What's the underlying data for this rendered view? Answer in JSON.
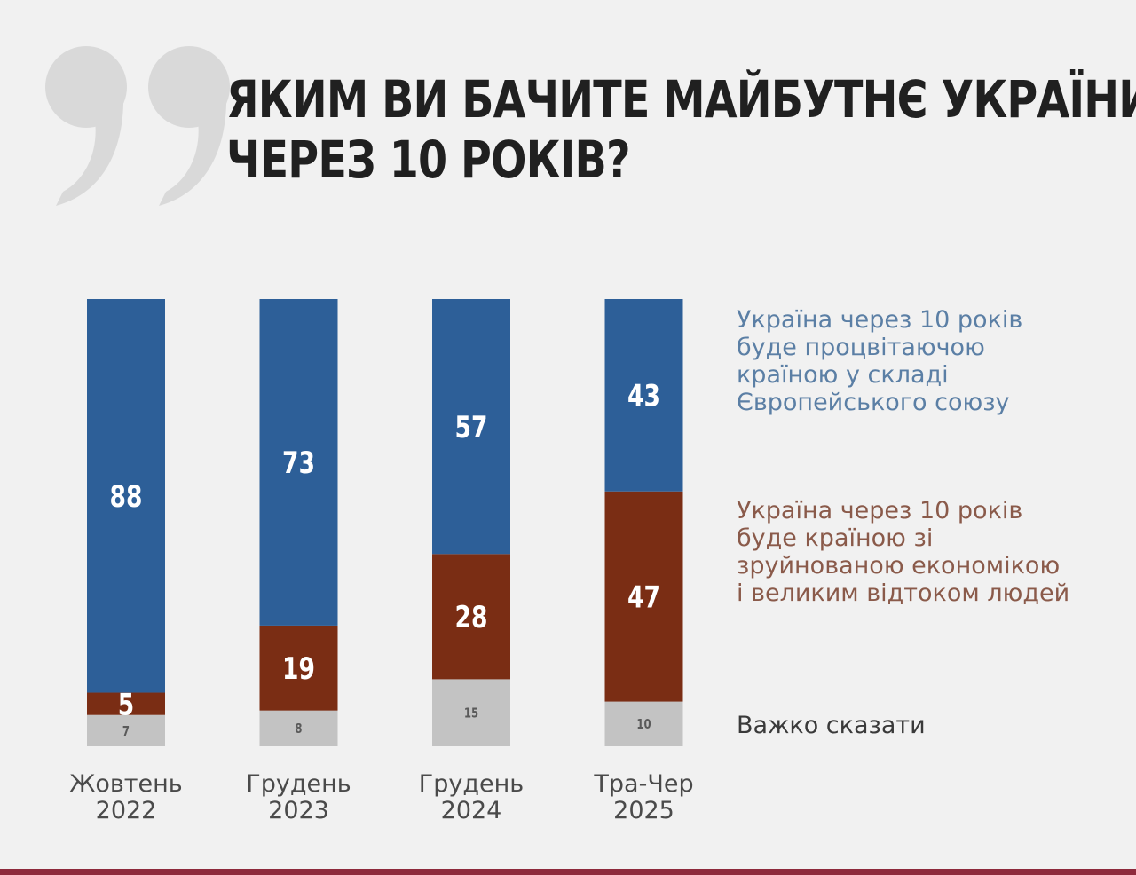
{
  "colors": {
    "background": "#f1f1f1",
    "blue": "#2d5f98",
    "red": "#7a2d14",
    "gray": "#c3c3c3",
    "quote": "#d9d9d9",
    "accent_line": "#8e2a3c"
  },
  "icons": {
    "quote": "quote-mark-icon"
  },
  "chart_data": {
    "type": "bar",
    "stacked": true,
    "title_lines": [
      "ЯКИМ ВИ БАЧИТЕ МАЙБУТНЄ УКРАЇНИ",
      "ЧЕРЕЗ 10 РОКІВ?"
    ],
    "categories": [
      [
        "Жовтень",
        "2022"
      ],
      [
        "Грудень",
        "2023"
      ],
      [
        "Грудень",
        "2024"
      ],
      [
        "Тра-Чер",
        "2025"
      ]
    ],
    "series": [
      {
        "key": "gray",
        "name_lines": [
          "Важко сказати"
        ],
        "values": [
          7,
          8,
          15,
          10
        ],
        "labels": [
          "7",
          "8",
          "15",
          "10"
        ]
      },
      {
        "key": "red",
        "name_lines": [
          "Україна через 10 років",
          "буде країною зі",
          "зруйнованою економікою",
          "і великим відтоком людей"
        ],
        "values": [
          5,
          19,
          28,
          47
        ],
        "labels": [
          "5",
          "19",
          "28",
          "47"
        ]
      },
      {
        "key": "blue",
        "name_lines": [
          "Україна через 10 років",
          "буде процвітаючою",
          "країною у складі",
          "Європейського союзу"
        ],
        "values": [
          88,
          73,
          57,
          43
        ],
        "labels": [
          "88",
          "73",
          "57",
          "43"
        ]
      }
    ],
    "ylim": [
      0,
      100
    ],
    "grid": false,
    "legend_position": "right"
  }
}
